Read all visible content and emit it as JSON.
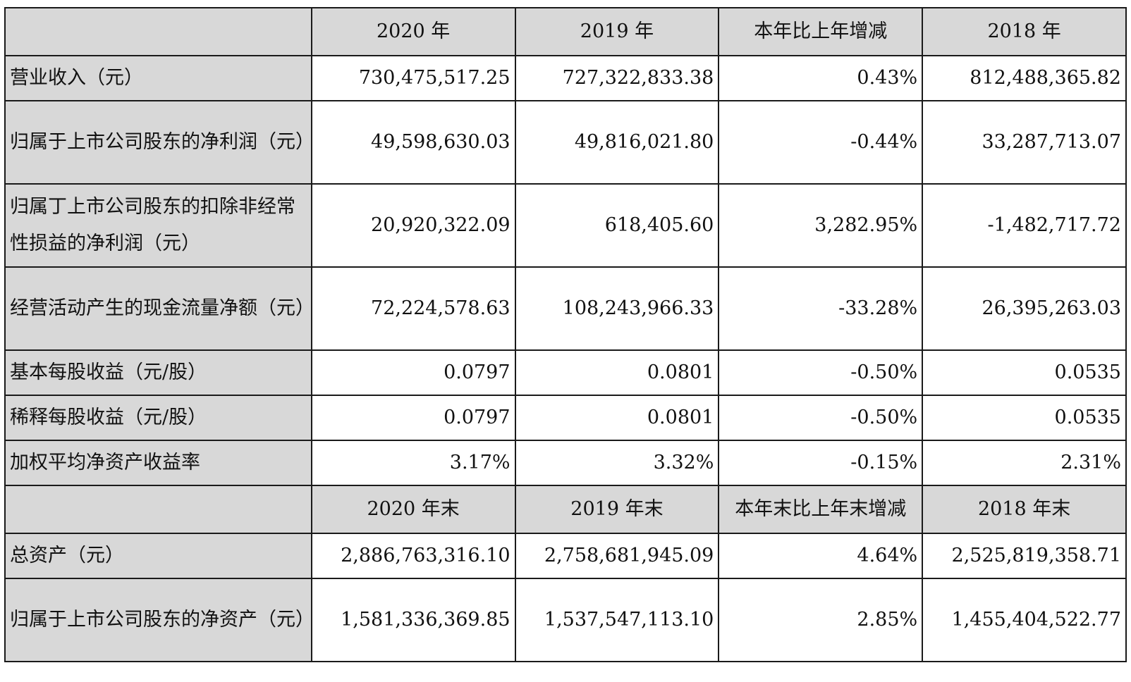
{
  "header1": [
    "",
    "2020 年",
    "2019 年",
    "本年比上年增减",
    "2018 年"
  ],
  "rows1": [
    {
      "label": "营业收入（元）",
      "v2020": "730,475,517.25",
      "v2019": "727,322,833.38",
      "chg": "0.43%",
      "v2018": "812,488,365.82",
      "tall": false
    },
    {
      "label": "归属于上市公司股东的净利润（元）",
      "v2020": "49,598,630.03",
      "v2019": "49,816,021.80",
      "chg": "-0.44%",
      "v2018": "33,287,713.07",
      "tall": true
    },
    {
      "label": "归属丁上市公司股东的扣除非经常性损益的净利润（元）",
      "v2020": "20,920,322.09",
      "v2019": "618,405.60",
      "chg": "3,282.95%",
      "v2018": "-1,482,717.72",
      "tall": true
    },
    {
      "label": "经营活动产生的现金流量净额（元）",
      "v2020": "72,224,578.63",
      "v2019": "108,243,966.33",
      "chg": "-33.28%",
      "v2018": "26,395,263.03",
      "tall": true
    },
    {
      "label": "基本每股收益（元/股）",
      "v2020": "0.0797",
      "v2019": "0.0801",
      "chg": "-0.50%",
      "v2018": "0.0535",
      "tall": false
    },
    {
      "label": "稀释每股收益（元/股）",
      "v2020": "0.0797",
      "v2019": "0.0801",
      "chg": "-0.50%",
      "v2018": "0.0535",
      "tall": false
    },
    {
      "label": "加权平均净资产收益率",
      "v2020": "3.17%",
      "v2019": "3.32%",
      "chg": "-0.15%",
      "v2018": "2.31%",
      "tall": false
    }
  ],
  "header2": [
    "",
    "2020 年末",
    "2019 年末",
    "本年末比上年末增减",
    "2018 年末"
  ],
  "rows2": [
    {
      "label": "总资产（元）",
      "v2020": "2,886,763,316.10",
      "v2019": "2,758,681,945.09",
      "chg": "4.64%",
      "v2018": "2,525,819,358.71",
      "tall": false
    },
    {
      "label": "归属于上市公司股东的净资产（元）",
      "v2020": "1,581,336,369.85",
      "v2019": "1,537,547,113.10",
      "chg": "2.85%",
      "v2018": "1,455,404,522.77",
      "tall": true
    }
  ]
}
